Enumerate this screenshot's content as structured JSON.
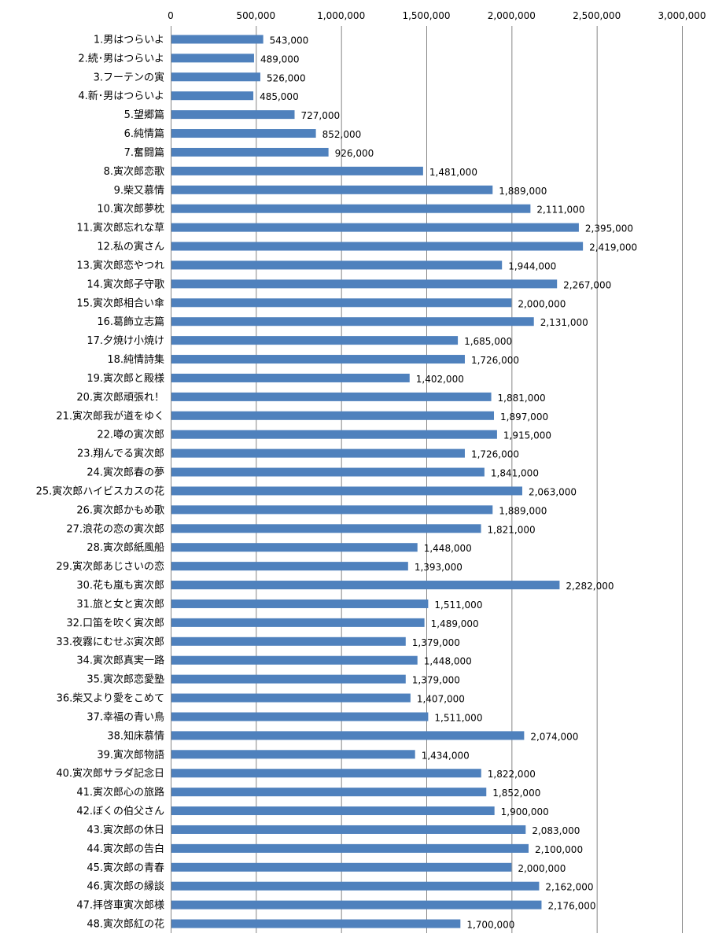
{
  "chart_data": {
    "type": "bar",
    "orientation": "horizontal",
    "title": "",
    "xlabel": "",
    "ylabel": "",
    "xlim": [
      0,
      3000000
    ],
    "x_ticks": [
      "0",
      "500,000",
      "1,000,000",
      "1,500,000",
      "2,000,000",
      "2,500,000",
      "3,000,000"
    ],
    "x_axis_position": "top",
    "grid": "vertical",
    "legend": "none",
    "bar_color": "#4f81bd",
    "categories": [
      "1.男はつらいよ",
      "2.続･男はつらいよ",
      "3.フーテンの寅",
      "4.新･男はつらいよ",
      "5.望郷篇",
      "6.純情篇",
      "7.奮闘篇",
      "8.寅次郎恋歌",
      "9.柴又慕情",
      "10.寅次郎夢枕",
      "11.寅次郎忘れな草",
      "12.私の寅さん",
      "13.寅次郎恋やつれ",
      "14.寅次郎子守歌",
      "15.寅次郎相合い傘",
      "16.葛飾立志篇",
      "17.夕焼け小焼け",
      "18.純情詩集",
      "19.寅次郎と殿様",
      "20.寅次郎頑張れ！",
      "21.寅次郎我が道をゆく",
      "22.噂の寅次郎",
      "23.翔んでる寅次郎",
      "24.寅次郎春の夢",
      "25.寅次郎ハイビスカスの花",
      "26.寅次郎かもめ歌",
      "27.浪花の恋の寅次郎",
      "28.寅次郎紙風船",
      "29.寅次郎あじさいの恋",
      "30.花も嵐も寅次郎",
      "31.旅と女と寅次郎",
      "32.口笛を吹く寅次郎",
      "33.夜霧にむせぶ寅次郎",
      "34.寅次郎真実一路",
      "35.寅次郎恋愛塾",
      "36.柴又より愛をこめて",
      "37.幸福の青い鳥",
      "38.知床慕情",
      "39.寅次郎物語",
      "40.寅次郎サラダ記念日",
      "41.寅次郎心の旅路",
      "42.ぼくの伯父さん",
      "43.寅次郎の休日",
      "44.寅次郎の告白",
      "45.寅次郎の青春",
      "46.寅次郎の縁談",
      "47.拝啓車寅次郎様",
      "48.寅次郎紅の花"
    ],
    "values": [
      543000,
      489000,
      526000,
      485000,
      727000,
      852000,
      926000,
      1481000,
      1889000,
      2111000,
      2395000,
      2419000,
      1944000,
      2267000,
      2000000,
      2131000,
      1685000,
      1726000,
      1402000,
      1881000,
      1897000,
      1915000,
      1726000,
      1841000,
      2063000,
      1889000,
      1821000,
      1448000,
      1393000,
      2282000,
      1511000,
      1489000,
      1379000,
      1448000,
      1379000,
      1407000,
      1511000,
      2074000,
      1434000,
      1822000,
      1852000,
      1900000,
      2083000,
      2100000,
      2000000,
      2162000,
      2176000,
      1700000
    ],
    "value_labels": [
      "543,000",
      "489,000",
      "526,000",
      "485,000",
      "727,000",
      "852,000",
      "926,000",
      "1,481,000",
      "1,889,000",
      "2,111,000",
      "2,395,000",
      "2,419,000",
      "1,944,000",
      "2,267,000",
      "2,000,000",
      "2,131,000",
      "1,685,000",
      "1,726,000",
      "1,402,000",
      "1,881,000",
      "1,897,000",
      "1,915,000",
      "1,726,000",
      "1,841,000",
      "2,063,000",
      "1,889,000",
      "1,821,000",
      "1,448,000",
      "1,393,000",
      "2,282,000",
      "1,511,000",
      "1,489,000",
      "1,379,000",
      "1,448,000",
      "1,379,000",
      "1,407,000",
      "1,511,000",
      "2,074,000",
      "1,434,000",
      "1,822,000",
      "1,852,000",
      "1,900,000",
      "2,083,000",
      "2,100,000",
      "2,000,000",
      "2,162,000",
      "2,176,000",
      "1,700,000"
    ]
  }
}
